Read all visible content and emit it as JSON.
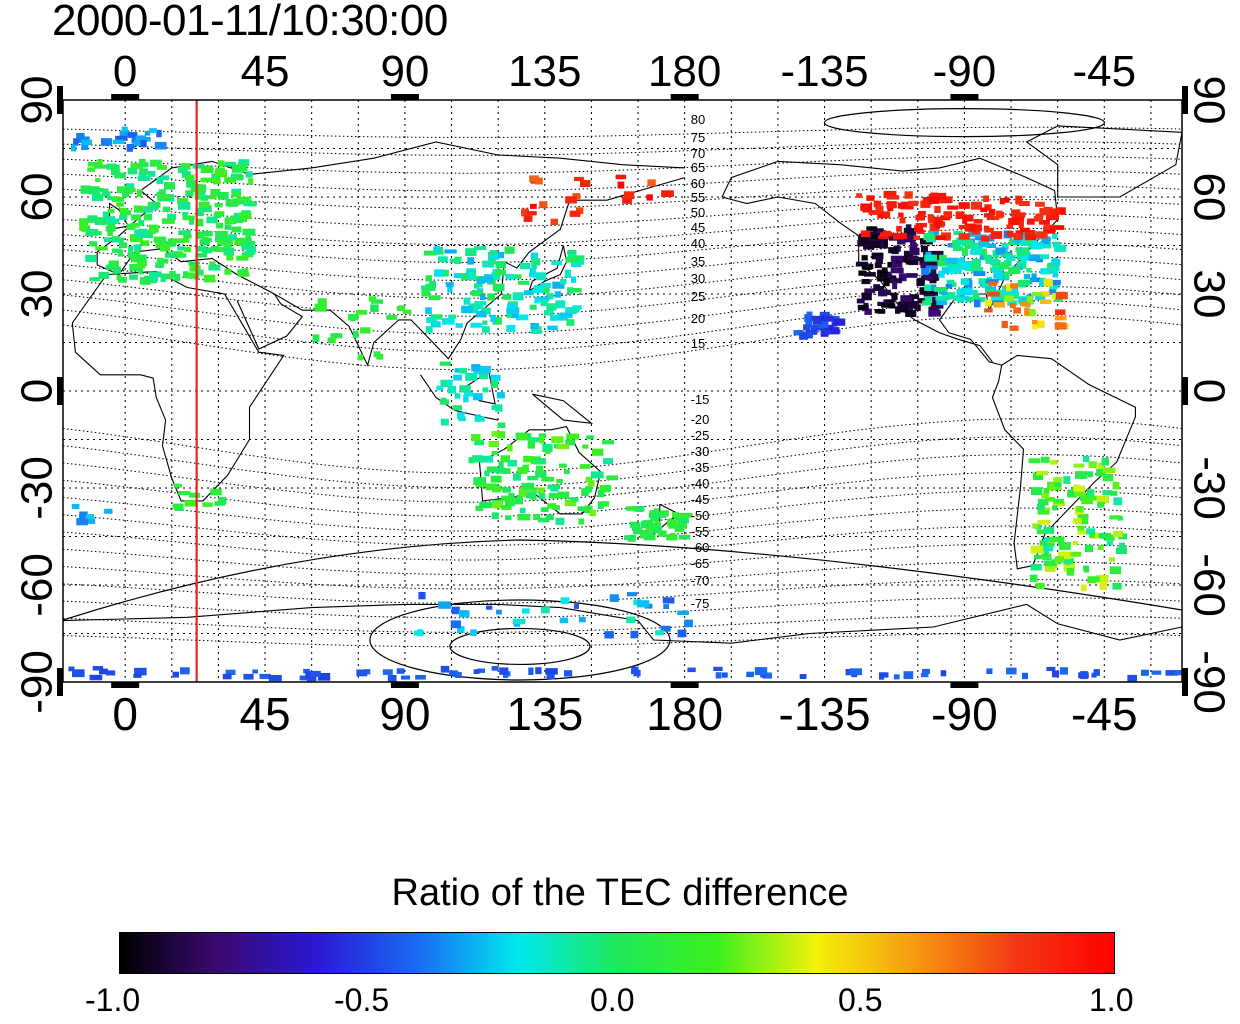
{
  "title": "2000-01-11/10:30:00",
  "map": {
    "lon_ticks_top": [
      "0",
      "45",
      "90",
      "135",
      "180",
      "-135",
      "-90",
      "-45"
    ],
    "lon_ticks_bottom": [
      "0",
      "45",
      "90",
      "135",
      "180",
      "-135",
      "-90",
      "-45"
    ],
    "lat_ticks_left": [
      "90",
      "60",
      "30",
      "0",
      "-30",
      "-60",
      "-90"
    ],
    "lat_ticks_right": [
      "90",
      "60",
      "30",
      "0",
      "-30",
      "-60",
      "-90"
    ],
    "lon_range": [
      -20,
      340
    ],
    "lat_range": [
      -90,
      90
    ],
    "marker_meridian_lon": 23,
    "marker_color": "#e8231c",
    "contour_labels_north": [
      "80",
      "75",
      "70",
      "65",
      "60",
      "55",
      "50",
      "45",
      "40",
      "35",
      "30",
      "25",
      "20",
      "15"
    ],
    "contour_labels_south": [
      "15",
      "20",
      "25",
      "30",
      "35",
      "40",
      "45",
      "50",
      "55",
      "60",
      "65",
      "70",
      "75"
    ],
    "grid": "dotted",
    "coastlines": true
  },
  "colorbar": {
    "title": "Ratio of the TEC difference",
    "tick_labels": [
      "-1.0",
      "-0.5",
      "0.0",
      "0.5",
      "1.0"
    ],
    "range": [
      -1.0,
      1.0
    ],
    "colormap": [
      "#000000",
      "#3a0a73",
      "#2a1ad6",
      "#1a6bf2",
      "#00e8f0",
      "#1ee85a",
      "#3cf01e",
      "#f2f20a",
      "#f79a10",
      "#f23a14",
      "#ff0000"
    ]
  }
}
